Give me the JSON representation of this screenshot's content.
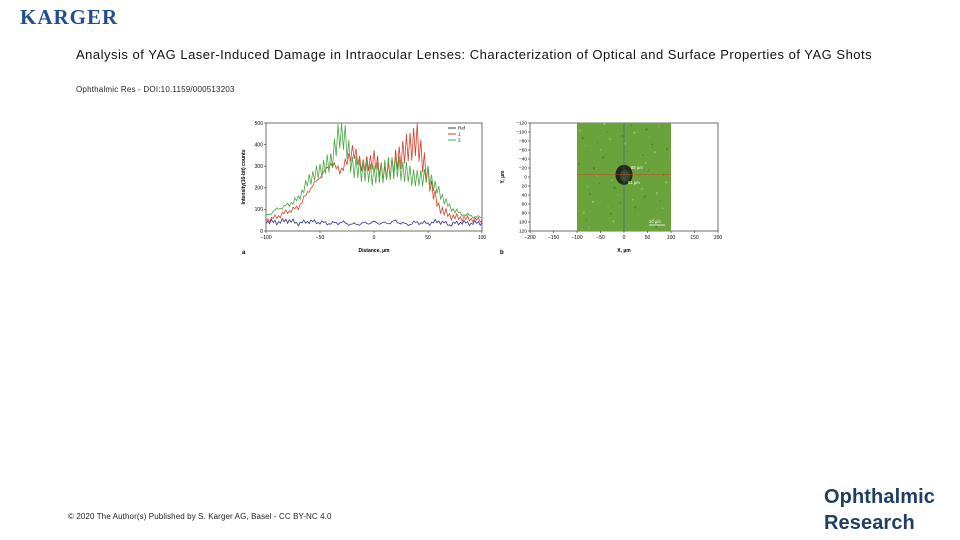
{
  "header": {
    "logo_text": "KARGER",
    "brand_color": "#1f4f8f"
  },
  "article": {
    "title": "Analysis of YAG Laser-Induced Damage in Intraocular Lenses: Characterization of Optical and Surface Properties of YAG Shots",
    "citation": "Ophthalmic Res - DOI:10.1159/000513203"
  },
  "figure": {
    "panel_a_letter": "a",
    "panel_b_letter": "b",
    "micrograph_labels": {
      "m1": "85 µm",
      "m2": "81 µm",
      "m3": "20 µm"
    }
  },
  "chart_data": [
    {
      "type": "line",
      "xlabel": "Distance, µm",
      "ylabel": "Intensity(16-bit) counts",
      "xlim": [
        -100,
        100
      ],
      "ylim": [
        0,
        500
      ],
      "x_ticks": [
        "−100",
        "−50",
        "0",
        "50",
        "100"
      ],
      "y_ticks": [
        "0",
        "100",
        "200",
        "300",
        "400",
        "500"
      ],
      "legend_position": "top-right",
      "series": [
        {
          "name": "Ref",
          "color": "#2e3192",
          "x": [
            -100,
            -90,
            -80,
            -70,
            -60,
            -50,
            -40,
            -30,
            -20,
            -10,
            0,
            10,
            20,
            30,
            40,
            50,
            60,
            70,
            80,
            90,
            100
          ],
          "values": [
            45,
            40,
            50,
            35,
            45,
            40,
            35,
            40,
            30,
            35,
            40,
            35,
            45,
            30,
            40,
            35,
            45,
            30,
            40,
            35,
            40
          ]
        },
        {
          "name": "1",
          "color": "#d4412a",
          "x": [
            -100,
            -90,
            -80,
            -70,
            -60,
            -50,
            -40,
            -30,
            -20,
            -10,
            0,
            10,
            20,
            30,
            40,
            50,
            60,
            70,
            80,
            90,
            100
          ],
          "values": [
            50,
            65,
            90,
            110,
            190,
            250,
            310,
            280,
            370,
            300,
            330,
            260,
            320,
            380,
            420,
            250,
            110,
            70,
            60,
            55,
            50
          ]
        },
        {
          "name": "2",
          "color": "#4aa843",
          "x": [
            -100,
            -90,
            -80,
            -70,
            -60,
            -50,
            -40,
            -30,
            -20,
            -10,
            0,
            10,
            20,
            30,
            40,
            50,
            60,
            70,
            80,
            90,
            100
          ],
          "values": [
            70,
            100,
            120,
            150,
            240,
            280,
            320,
            480,
            300,
            280,
            260,
            280,
            300,
            270,
            240,
            260,
            180,
            110,
            80,
            70,
            60
          ]
        }
      ]
    },
    {
      "type": "image",
      "xlabel": "X, µm",
      "ylabel": "Y, µm",
      "xlim": [
        -200,
        200
      ],
      "ylim": [
        -120,
        120
      ],
      "x_ticks": [
        "−200",
        "−150",
        "−100",
        "−50",
        "0",
        "50",
        "100",
        "150",
        "200"
      ],
      "y_ticks": [
        "−120",
        "−100",
        "−80",
        "−60",
        "−40",
        "−20",
        "0",
        "20",
        "40",
        "60",
        "80",
        "100",
        "120"
      ]
    }
  ],
  "footer": {
    "copyright": "© 2020 The Author(s) Published by S. Karger AG, Basel - CC BY-NC 4.0",
    "journal_line1": "Ophthalmic",
    "journal_line2": "Research"
  }
}
